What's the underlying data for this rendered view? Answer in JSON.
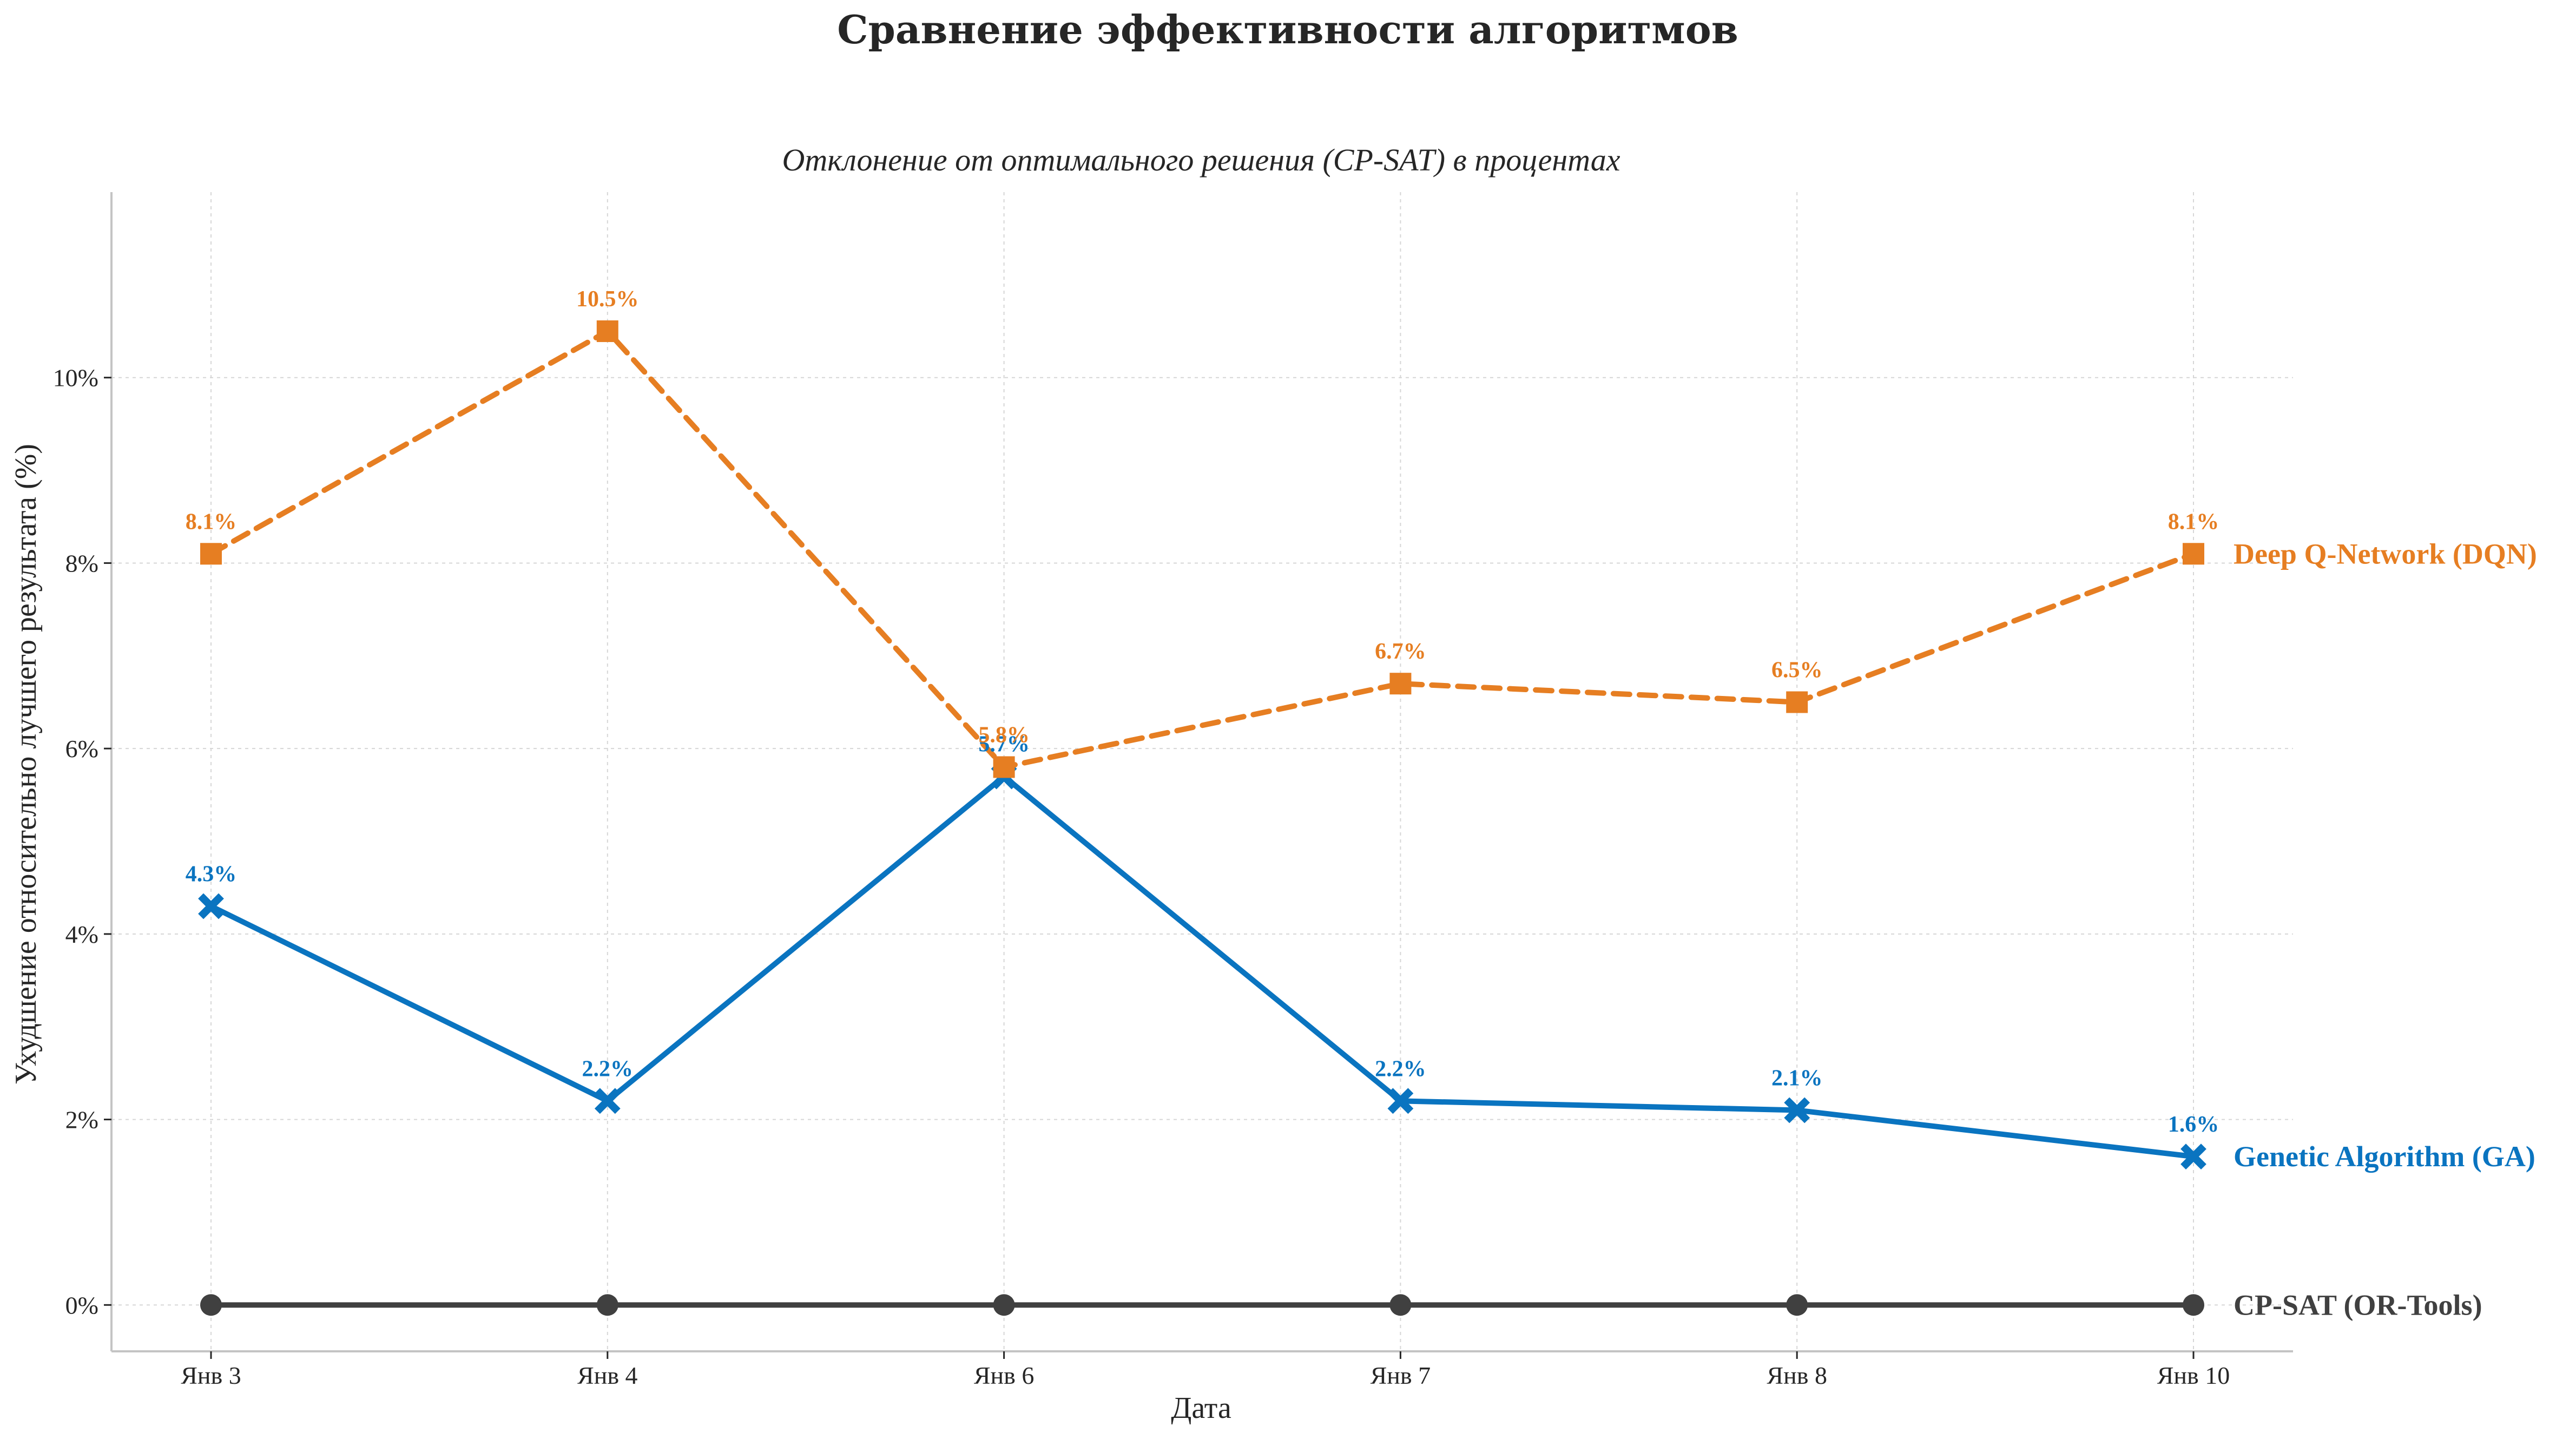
{
  "chart_data": {
    "type": "line",
    "title": "Сравнение эффективности алгоритмов",
    "subtitle": "Отклонение от оптимального решения (CP-SAT) в процентах",
    "xlabel": "Дата",
    "ylabel": "Ухудшение относительно лучшего результата (%)",
    "categories": [
      "Янв 3",
      "Янв 4",
      "Янв 6",
      "Янв 7",
      "Янв 8",
      "Янв 10"
    ],
    "ylim": [
      -0.5,
      12
    ],
    "yticks": [
      0,
      2,
      4,
      6,
      8,
      10
    ],
    "ytick_labels": [
      "0%",
      "2%",
      "4%",
      "6%",
      "8%",
      "10%"
    ],
    "grid": true,
    "legend": "none",
    "series": [
      {
        "name": "Deep Q-Network (DQN)",
        "color": "#e67e22",
        "line_style": "dashed",
        "marker": "square",
        "values": [
          8.1,
          10.5,
          5.8,
          6.7,
          6.5,
          8.1
        ],
        "labels": [
          "8.1%",
          "10.5%",
          "5.8%",
          "6.7%",
          "6.5%",
          "8.1%"
        ]
      },
      {
        "name": "Genetic Algorithm (GA)",
        "color": "#0a74c0",
        "line_style": "solid",
        "marker": "x",
        "values": [
          4.3,
          2.2,
          5.7,
          2.2,
          2.1,
          1.6
        ],
        "labels": [
          "4.3%",
          "2.2%",
          "5.7%",
          "2.2%",
          "2.1%",
          "1.6%"
        ]
      },
      {
        "name": "CP-SAT (OR-Tools)",
        "color": "#404040",
        "line_style": "solid",
        "marker": "circle",
        "values": [
          0,
          0,
          0,
          0,
          0,
          0
        ],
        "labels": []
      }
    ]
  }
}
